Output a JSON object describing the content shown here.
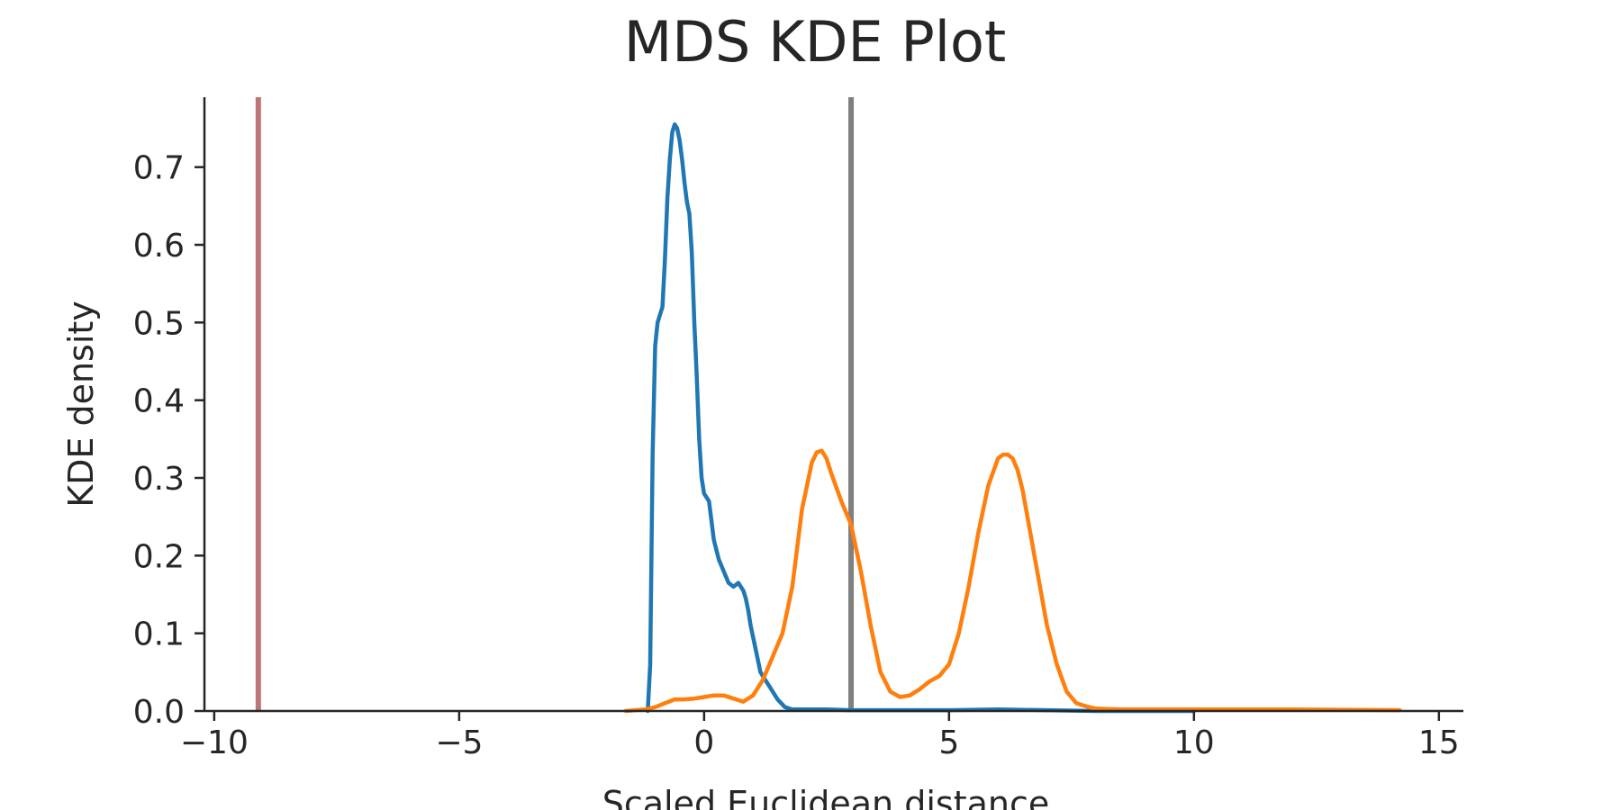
{
  "chart_data": {
    "type": "line",
    "title": "MDS KDE Plot",
    "xlabel": "Scaled Euclidean distance",
    "ylabel": "KDE density",
    "xlim": [
      -10.2,
      15.5
    ],
    "ylim": [
      0,
      0.79
    ],
    "x_ticks": [
      -10,
      -5,
      0,
      5,
      10,
      15
    ],
    "x_tick_labels": [
      "−10",
      "−5",
      "0",
      "5",
      "10",
      "15"
    ],
    "y_ticks": [
      0.0,
      0.1,
      0.2,
      0.3,
      0.4,
      0.5,
      0.6,
      0.7
    ],
    "y_tick_labels": [
      "0.0",
      "0.1",
      "0.2",
      "0.3",
      "0.4",
      "0.5",
      "0.6",
      "0.7"
    ],
    "grid": false,
    "series": [
      {
        "color": "#1f77b4",
        "x": [
          -1.15,
          -1.1,
          -1.05,
          -1.0,
          -0.95,
          -0.9,
          -0.85,
          -0.8,
          -0.75,
          -0.7,
          -0.65,
          -0.6,
          -0.55,
          -0.5,
          -0.45,
          -0.4,
          -0.35,
          -0.3,
          -0.25,
          -0.2,
          -0.15,
          -0.1,
          -0.05,
          0.0,
          0.1,
          0.2,
          0.3,
          0.4,
          0.5,
          0.6,
          0.7,
          0.75,
          0.8,
          0.85,
          0.9,
          0.95,
          1.05,
          1.15,
          1.25,
          1.35,
          1.5,
          1.65,
          1.8,
          1.9,
          2.0,
          2.5,
          3.0,
          4.0,
          5.0,
          6.0,
          7.0,
          8.0,
          9.0,
          10.0
        ],
        "y": [
          0.0,
          0.06,
          0.33,
          0.47,
          0.5,
          0.51,
          0.52,
          0.58,
          0.66,
          0.71,
          0.745,
          0.755,
          0.75,
          0.735,
          0.71,
          0.68,
          0.655,
          0.64,
          0.59,
          0.5,
          0.43,
          0.35,
          0.3,
          0.28,
          0.27,
          0.22,
          0.195,
          0.18,
          0.165,
          0.16,
          0.165,
          0.16,
          0.155,
          0.145,
          0.13,
          0.11,
          0.08,
          0.05,
          0.04,
          0.03,
          0.015,
          0.005,
          0.002,
          0.002,
          0.002,
          0.002,
          0.001,
          0.001,
          0.001,
          0.002,
          0.001,
          0.0,
          0.0,
          0.0
        ]
      },
      {
        "color": "#ff7f0e",
        "x": [
          -1.6,
          -1.2,
          -1.0,
          -0.8,
          -0.6,
          -0.4,
          -0.2,
          0.0,
          0.2,
          0.4,
          0.6,
          0.8,
          1.0,
          1.2,
          1.4,
          1.6,
          1.8,
          2.0,
          2.1,
          2.2,
          2.3,
          2.4,
          2.5,
          2.6,
          2.8,
          3.0,
          3.2,
          3.4,
          3.6,
          3.8,
          4.0,
          4.2,
          4.4,
          4.6,
          4.8,
          5.0,
          5.2,
          5.4,
          5.6,
          5.8,
          6.0,
          6.1,
          6.2,
          6.3,
          6.4,
          6.5,
          6.6,
          6.8,
          7.0,
          7.2,
          7.4,
          7.6,
          7.8,
          8.0,
          8.5,
          9.0,
          10.0,
          12.0,
          14.2
        ],
        "y": [
          0.0,
          0.002,
          0.005,
          0.01,
          0.015,
          0.015,
          0.016,
          0.018,
          0.02,
          0.02,
          0.016,
          0.012,
          0.02,
          0.04,
          0.07,
          0.1,
          0.16,
          0.26,
          0.29,
          0.32,
          0.333,
          0.335,
          0.325,
          0.305,
          0.27,
          0.24,
          0.18,
          0.11,
          0.05,
          0.025,
          0.018,
          0.02,
          0.028,
          0.038,
          0.045,
          0.06,
          0.1,
          0.16,
          0.23,
          0.29,
          0.325,
          0.33,
          0.33,
          0.325,
          0.31,
          0.285,
          0.25,
          0.18,
          0.11,
          0.06,
          0.025,
          0.01,
          0.006,
          0.003,
          0.002,
          0.002,
          0.002,
          0.002,
          0.001
        ]
      }
    ],
    "reference_lines": [
      {
        "x": -9.1,
        "color": "#bc7676"
      },
      {
        "x": 3.0,
        "color": "#808080"
      }
    ]
  }
}
